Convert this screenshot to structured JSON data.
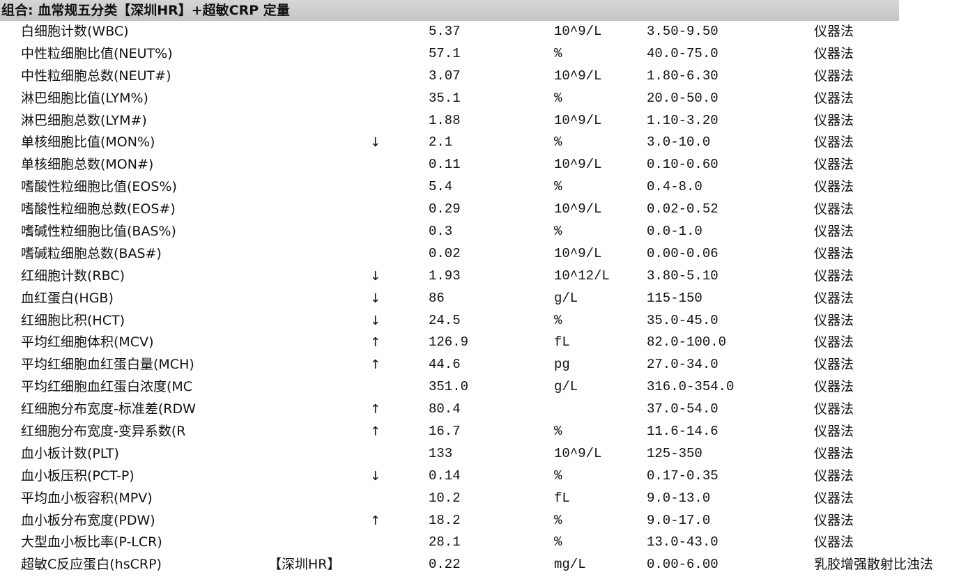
{
  "header": {
    "title": "组合: 血常规五分类【深圳HR】+超敏CRP 定量"
  },
  "rows": [
    {
      "name": "白细胞计数(WBC)",
      "tag": "",
      "flag": "",
      "value": "5.37",
      "unit": "10^9/L",
      "range": "3.50-9.50",
      "method": "仪器法"
    },
    {
      "name": "中性粒细胞比值(NEUT%)",
      "tag": "",
      "flag": "",
      "value": "57.1",
      "unit": "%",
      "range": "40.0-75.0",
      "method": "仪器法"
    },
    {
      "name": "中性粒细胞总数(NEUT#)",
      "tag": "",
      "flag": "",
      "value": "3.07",
      "unit": "10^9/L",
      "range": "1.80-6.30",
      "method": "仪器法"
    },
    {
      "name": "淋巴细胞比值(LYM%)",
      "tag": "",
      "flag": "",
      "value": "35.1",
      "unit": "%",
      "range": "20.0-50.0",
      "method": "仪器法"
    },
    {
      "name": "淋巴细胞总数(LYM#)",
      "tag": "",
      "flag": "",
      "value": "1.88",
      "unit": "10^9/L",
      "range": "1.10-3.20",
      "method": "仪器法"
    },
    {
      "name": "单核细胞比值(MON%)",
      "tag": "",
      "flag": "↓",
      "value": "2.1",
      "unit": "%",
      "range": "3.0-10.0",
      "method": "仪器法"
    },
    {
      "name": "单核细胞总数(MON#)",
      "tag": "",
      "flag": "",
      "value": "0.11",
      "unit": "10^9/L",
      "range": "0.10-0.60",
      "method": "仪器法"
    },
    {
      "name": "嗜酸性粒细胞比值(EOS%)",
      "tag": "",
      "flag": "",
      "value": "5.4",
      "unit": "%",
      "range": "0.4-8.0",
      "method": "仪器法"
    },
    {
      "name": "嗜酸性粒细胞总数(EOS#)",
      "tag": "",
      "flag": "",
      "value": "0.29",
      "unit": "10^9/L",
      "range": "0.02-0.52",
      "method": "仪器法"
    },
    {
      "name": "嗜碱性粒细胞比值(BAS%)",
      "tag": "",
      "flag": "",
      "value": "0.3",
      "unit": "%",
      "range": "0.0-1.0",
      "method": "仪器法"
    },
    {
      "name": "嗜碱粒细胞总数(BAS#)",
      "tag": "",
      "flag": "",
      "value": "0.02",
      "unit": "10^9/L",
      "range": "0.00-0.06",
      "method": "仪器法"
    },
    {
      "name": "红细胞计数(RBC)",
      "tag": "",
      "flag": "↓",
      "value": "1.93",
      "unit": "10^12/L",
      "range": "3.80-5.10",
      "method": "仪器法"
    },
    {
      "name": "血红蛋白(HGB)",
      "tag": "",
      "flag": "↓",
      "value": "86",
      "unit": "g/L",
      "range": "115-150",
      "method": "仪器法"
    },
    {
      "name": "红细胞比积(HCT)",
      "tag": "",
      "flag": "↓",
      "value": "24.5",
      "unit": "%",
      "range": "35.0-45.0",
      "method": "仪器法"
    },
    {
      "name": "平均红细胞体积(MCV)",
      "tag": "",
      "flag": "↑",
      "value": "126.9",
      "unit": "fL",
      "range": "82.0-100.0",
      "method": "仪器法"
    },
    {
      "name": "平均红细胞血红蛋白量(MCH)",
      "tag": "",
      "flag": "↑",
      "value": "44.6",
      "unit": "pg",
      "range": "27.0-34.0",
      "method": "仪器法"
    },
    {
      "name": "平均红细胞血红蛋白浓度(MC",
      "tag": "",
      "flag": "",
      "value": "351.0",
      "unit": "g/L",
      "range": "316.0-354.0",
      "method": "仪器法"
    },
    {
      "name": "红细胞分布宽度-标准差(RDW",
      "tag": "",
      "flag": "↑",
      "value": "80.4",
      "unit": "",
      "range": "37.0-54.0",
      "method": "仪器法"
    },
    {
      "name": "红细胞分布宽度-变异系数(R",
      "tag": "",
      "flag": "↑",
      "value": "16.7",
      "unit": "%",
      "range": "11.6-14.6",
      "method": "仪器法"
    },
    {
      "name": "血小板计数(PLT)",
      "tag": "",
      "flag": "",
      "value": "133",
      "unit": "10^9/L",
      "range": "125-350",
      "method": "仪器法"
    },
    {
      "name": "血小板压积(PCT-P)",
      "tag": "",
      "flag": "↓",
      "value": "0.14",
      "unit": "%",
      "range": "0.17-0.35",
      "method": "仪器法"
    },
    {
      "name": "平均血小板容积(MPV)",
      "tag": "",
      "flag": "",
      "value": "10.2",
      "unit": "fL",
      "range": "9.0-13.0",
      "method": "仪器法"
    },
    {
      "name": "血小板分布宽度(PDW)",
      "tag": "",
      "flag": "↑",
      "value": "18.2",
      "unit": "%",
      "range": "9.0-17.0",
      "method": "仪器法"
    },
    {
      "name": "大型血小板比率(P-LCR)",
      "tag": "",
      "flag": "",
      "value": "28.1",
      "unit": "%",
      "range": "13.0-43.0",
      "method": "仪器法"
    },
    {
      "name": "超敏C反应蛋白(hsCRP)",
      "tag": "【深圳HR】",
      "flag": "",
      "value": "0.22",
      "unit": "mg/L",
      "range": "0.00-6.00",
      "method": "乳胶增强散射比浊法"
    }
  ]
}
